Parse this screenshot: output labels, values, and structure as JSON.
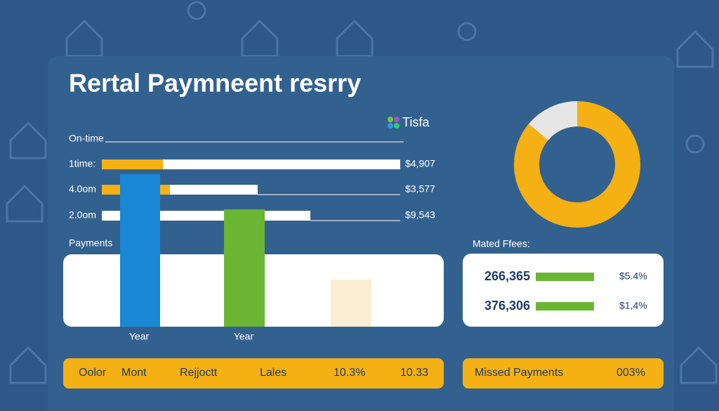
{
  "header": {
    "title": "Rertal Paymneent resrry",
    "logo": "Tisfa"
  },
  "top_chart": {
    "heading": "On-time",
    "rows": [
      {
        "label": "1time:",
        "amount": "$4,907"
      },
      {
        "label": "4.0om",
        "amount": "$3,577"
      },
      {
        "label": "2.0om",
        "amount": "$9,543"
      }
    ]
  },
  "payments": {
    "heading": "Payments",
    "labels": [
      "Year",
      "Year"
    ]
  },
  "fees": {
    "heading": "Mated Ffees:",
    "rows": [
      {
        "number": "266,365",
        "value": "$5.4%"
      },
      {
        "number": "376,306",
        "value": "$1,4%"
      }
    ]
  },
  "footer": {
    "left": [
      "Oolor",
      "Mont",
      "Rejjoctt",
      "Lales",
      "10.3%",
      "10.33"
    ],
    "right": [
      "Missed Payments",
      "003%"
    ]
  }
}
